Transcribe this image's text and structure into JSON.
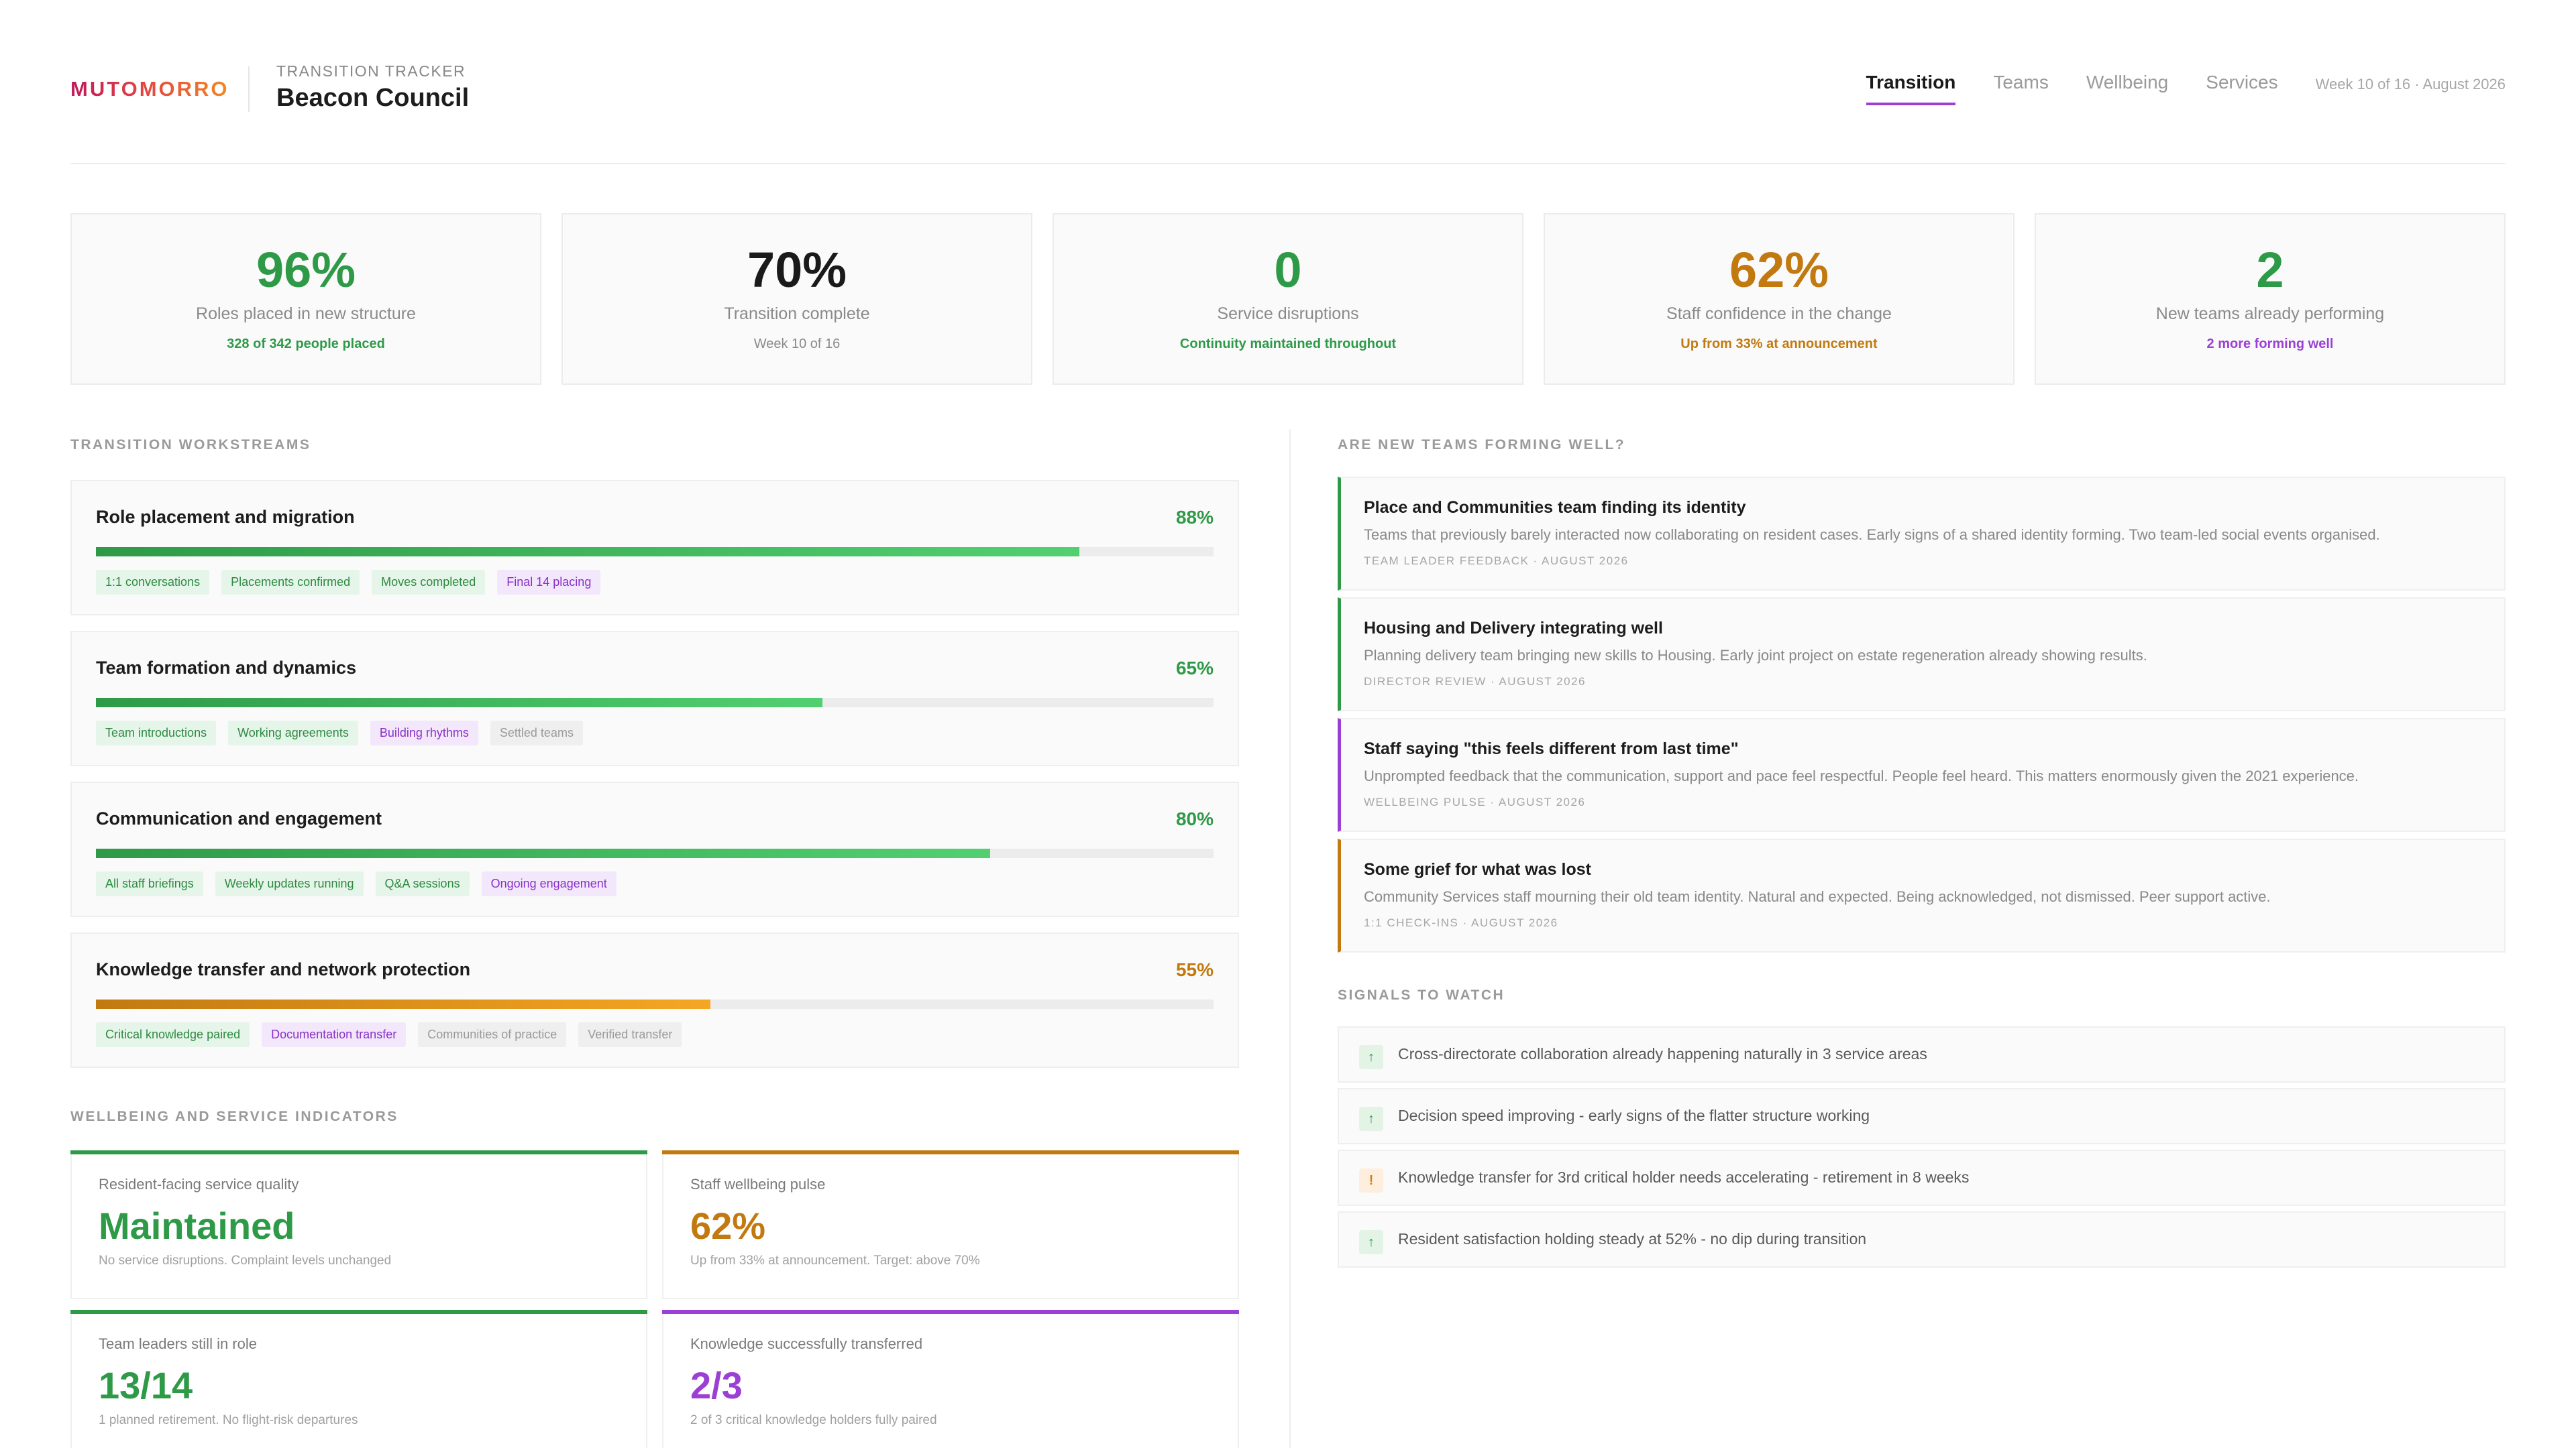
{
  "header": {
    "logo": "MUTOMORRO",
    "tracker_label": "TRANSITION TRACKER",
    "council": "Beacon Council",
    "tabs": [
      "Transition",
      "Teams",
      "Wellbeing",
      "Services"
    ],
    "active_tab": "Transition",
    "week": "Week 10 of 16 · August 2026"
  },
  "kpis": [
    {
      "value": "96%",
      "label": "Roles placed in new structure",
      "sub": "328 of 342 people placed",
      "color": "#2e9a48"
    },
    {
      "value": "70%",
      "label": "Transition complete",
      "sub": "Week 10 of 16",
      "color": "#1a1a1a"
    },
    {
      "value": "0",
      "label": "Service disruptions",
      "sub": "Continuity maintained throughout",
      "color": "#2e9a48"
    },
    {
      "value": "62%",
      "label": "Staff confidence in the change",
      "sub": "Up from 33% at announcement",
      "color": "#c27a10"
    },
    {
      "value": "2",
      "label": "New teams already performing",
      "sub": "2 more forming well",
      "color": "#9c3fd4"
    }
  ],
  "workstreams": {
    "title": "TRANSITION WORKSTREAMS",
    "items": [
      {
        "name": "Role placement and migration",
        "pct": "88%",
        "progress": 0.88,
        "tone": "green",
        "chips": [
          {
            "label": "1:1 conversations",
            "state": "done"
          },
          {
            "label": "Placements confirmed",
            "state": "done"
          },
          {
            "label": "Moves completed",
            "state": "done"
          },
          {
            "label": "Final 14 placing",
            "state": "active"
          }
        ]
      },
      {
        "name": "Team formation and dynamics",
        "pct": "65%",
        "progress": 0.65,
        "tone": "green",
        "chips": [
          {
            "label": "Team introductions",
            "state": "done"
          },
          {
            "label": "Working agreements",
            "state": "done"
          },
          {
            "label": "Building rhythms",
            "state": "active"
          },
          {
            "label": "Settled teams",
            "state": "todo"
          }
        ]
      },
      {
        "name": "Communication and engagement",
        "pct": "80%",
        "progress": 0.8,
        "tone": "green",
        "chips": [
          {
            "label": "All staff briefings",
            "state": "done"
          },
          {
            "label": "Weekly updates running",
            "state": "done"
          },
          {
            "label": "Q&A sessions",
            "state": "done"
          },
          {
            "label": "Ongoing engagement",
            "state": "active"
          }
        ]
      },
      {
        "name": "Knowledge transfer and network protection",
        "pct": "55%",
        "progress": 0.55,
        "tone": "orange",
        "chips": [
          {
            "label": "Critical knowledge paired",
            "state": "done"
          },
          {
            "label": "Documentation transfer",
            "state": "active"
          },
          {
            "label": "Communities of practice",
            "state": "todo"
          },
          {
            "label": "Verified transfer",
            "state": "todo"
          }
        ]
      }
    ]
  },
  "indicators": {
    "title": "WELLBEING AND SERVICE INDICATORS",
    "items": [
      {
        "label": "Resident-facing service quality",
        "value": "Maintained",
        "sub": "No service disruptions. Complaint levels unchanged",
        "color": "#2e9a48"
      },
      {
        "label": "Staff wellbeing pulse",
        "value": "62%",
        "sub": "Up from 33% at announcement. Target: above 70%",
        "color": "#c27a10"
      },
      {
        "label": "Team leaders still in role",
        "value": "13/14",
        "sub": "1 planned retirement. No flight-risk departures",
        "color": "#2e9a48"
      },
      {
        "label": "Knowledge successfully transferred",
        "value": "2/3",
        "sub": "2 of 3 critical knowledge holders fully paired",
        "color": "#9c3fd4"
      }
    ]
  },
  "teams": {
    "title": "ARE NEW TEAMS FORMING WELL?",
    "items": [
      {
        "title": "Place and Communities team finding its identity",
        "text": "Teams that previously barely interacted now collaborating on resident cases. Early signs of a shared identity forming. Two team-led social events organised.",
        "meta": "TEAM LEADER FEEDBACK · AUGUST 2026",
        "color": "#2e9a48"
      },
      {
        "title": "Housing and Delivery integrating well",
        "text": "Planning delivery team bringing new skills to Housing. Early joint project on estate regeneration already showing results.",
        "meta": "DIRECTOR REVIEW · AUGUST 2026",
        "color": "#2e9a48"
      },
      {
        "title": "Staff saying \"this feels different from last time\"",
        "text": "Unprompted feedback that the communication, support and pace feel respectful. People feel heard. This matters enormously given the 2021 experience.",
        "meta": "WELLBEING PULSE · AUGUST 2026",
        "color": "#9c3fd4"
      },
      {
        "title": "Some grief for what was lost",
        "text": "Community Services staff mourning their old team identity. Natural and expected. Being acknowledged, not dismissed. Peer support active.",
        "meta": "1:1 CHECK-INS · AUGUST 2026",
        "color": "#c27a10"
      }
    ]
  },
  "signals": {
    "title": "SIGNALS TO WATCH",
    "items": [
      {
        "icon": "arrow-up-icon",
        "glyph": "↑",
        "type": "up",
        "text": "Cross-directorate collaboration already happening naturally in 3 service areas"
      },
      {
        "icon": "arrow-up-icon",
        "glyph": "↑",
        "type": "up",
        "text": "Decision speed improving - early signs of the flatter structure working"
      },
      {
        "icon": "warning-icon",
        "glyph": "!",
        "type": "warn",
        "text": "Knowledge transfer for 3rd critical holder needs accelerating - retirement in 8 weeks"
      },
      {
        "icon": "arrow-up-icon",
        "glyph": "↑",
        "type": "up",
        "text": "Resident satisfaction holding steady at 52% - no dip during transition"
      }
    ]
  }
}
